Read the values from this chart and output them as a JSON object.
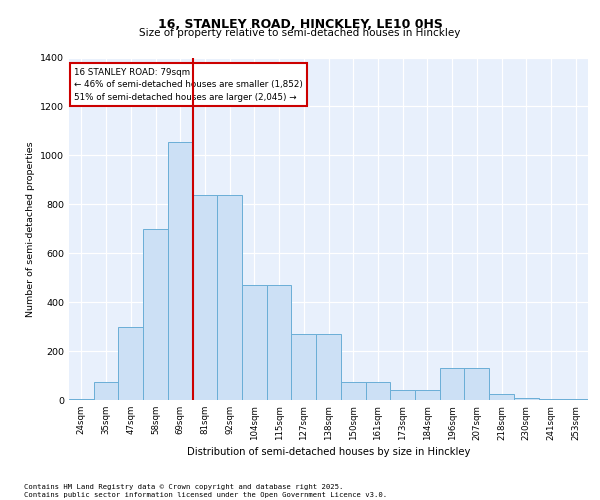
{
  "title": "16, STANLEY ROAD, HINCKLEY, LE10 0HS",
  "subtitle": "Size of property relative to semi-detached houses in Hinckley",
  "xlabel": "Distribution of semi-detached houses by size in Hinckley",
  "ylabel": "Number of semi-detached properties",
  "categories": [
    "24sqm",
    "35sqm",
    "47sqm",
    "58sqm",
    "69sqm",
    "81sqm",
    "92sqm",
    "104sqm",
    "115sqm",
    "127sqm",
    "138sqm",
    "150sqm",
    "161sqm",
    "173sqm",
    "184sqm",
    "196sqm",
    "207sqm",
    "218sqm",
    "230sqm",
    "241sqm",
    "253sqm"
  ],
  "values": [
    5,
    75,
    300,
    700,
    1055,
    840,
    840,
    470,
    470,
    270,
    270,
    75,
    75,
    40,
    40,
    130,
    130,
    25,
    10,
    5,
    5
  ],
  "bar_color": "#cce0f5",
  "bar_edge_color": "#6aaed6",
  "vline_color": "#cc0000",
  "vline_pos": 4.5,
  "annotation_line1": "16 STANLEY ROAD: 79sqm",
  "annotation_line2": "← 46% of semi-detached houses are smaller (1,852)",
  "annotation_line3": "51% of semi-detached houses are larger (2,045) →",
  "annotation_box_edgecolor": "#cc0000",
  "ylim": [
    0,
    1400
  ],
  "yticks": [
    0,
    200,
    400,
    600,
    800,
    1000,
    1200,
    1400
  ],
  "background_color": "#e8f0fc",
  "grid_color": "#ffffff",
  "title_fontsize": 9,
  "subtitle_fontsize": 7.5,
  "footer_line1": "Contains HM Land Registry data © Crown copyright and database right 2025.",
  "footer_line2": "Contains public sector information licensed under the Open Government Licence v3.0."
}
